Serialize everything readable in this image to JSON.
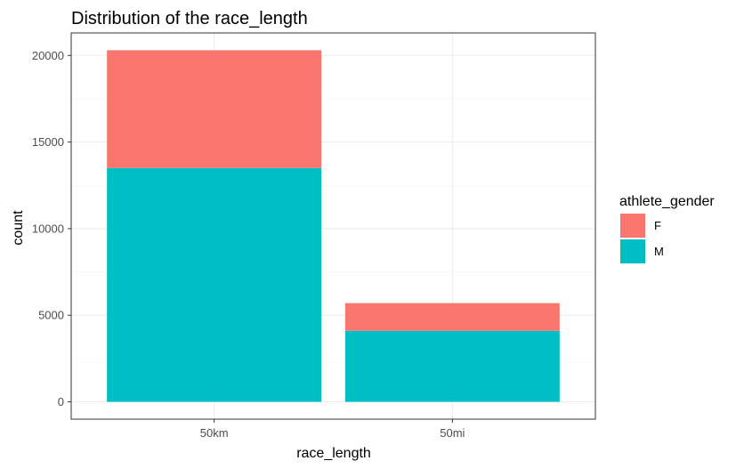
{
  "chart_data": {
    "type": "bar",
    "stacked": true,
    "title": "Distribution of the race_length",
    "xlabel": "race_length",
    "ylabel": "count",
    "categories": [
      "50km",
      "50mi"
    ],
    "series": [
      {
        "name": "F",
        "values": [
          6800,
          1600
        ],
        "color": "#F8766D"
      },
      {
        "name": "M",
        "values": [
          13500,
          4100
        ],
        "color": "#00BFC4"
      }
    ],
    "ylim": [
      -1000,
      21300
    ],
    "yticks": [
      0,
      5000,
      10000,
      15000,
      20000
    ],
    "ytick_labels": [
      "0",
      "5000",
      "10000",
      "15000",
      "20000"
    ],
    "grid": true,
    "legend": {
      "title": "athlete_gender",
      "position": "right",
      "labels": [
        "F",
        "M"
      ]
    }
  }
}
